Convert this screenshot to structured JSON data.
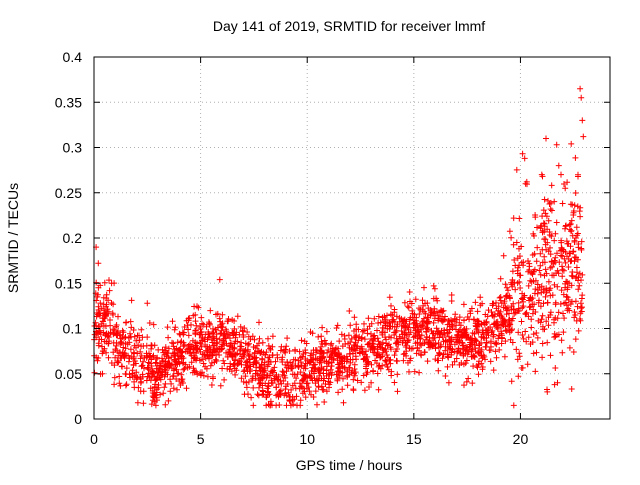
{
  "chart_data": {
    "type": "scatter",
    "title": "Day 141 of 2019, SRMTID for receiver lmmf",
    "xlabel": "GPS time / hours",
    "ylabel": "SRMTID / TECUs",
    "xlim": [
      0,
      24.2
    ],
    "ylim": [
      0,
      0.4
    ],
    "grid": true,
    "marker": "+",
    "marker_color": "#ff0000",
    "x_ticks": [
      0,
      5,
      10,
      15,
      20
    ],
    "y_ticks": [
      0,
      0.05,
      0.1,
      0.15,
      0.2,
      0.25,
      0.3,
      0.35,
      0.4
    ],
    "x_tick_labels": [
      "0",
      "5",
      "10",
      "15",
      "20"
    ],
    "y_tick_labels": [
      "0",
      "0.05",
      "0.1",
      "0.15",
      "0.2",
      "0.25",
      "0.3",
      "0.35",
      "0.4"
    ],
    "series": [
      {
        "name": "SRMTID",
        "trend": [
          [
            0,
            0.1
          ],
          [
            0.5,
            0.105
          ],
          [
            1,
            0.085
          ],
          [
            1.5,
            0.075
          ],
          [
            2,
            0.065
          ],
          [
            2.5,
            0.055
          ],
          [
            3,
            0.05
          ],
          [
            3.5,
            0.058
          ],
          [
            4,
            0.068
          ],
          [
            4.5,
            0.075
          ],
          [
            5,
            0.08
          ],
          [
            5.5,
            0.085
          ],
          [
            6,
            0.085
          ],
          [
            6.5,
            0.08
          ],
          [
            7,
            0.075
          ],
          [
            7.5,
            0.06
          ],
          [
            8,
            0.05
          ],
          [
            8.5,
            0.045
          ],
          [
            9,
            0.045
          ],
          [
            9.5,
            0.05
          ],
          [
            10,
            0.055
          ],
          [
            10.5,
            0.06
          ],
          [
            11,
            0.063
          ],
          [
            11.5,
            0.066
          ],
          [
            12,
            0.07
          ],
          [
            12.5,
            0.073
          ],
          [
            13,
            0.077
          ],
          [
            13.5,
            0.082
          ],
          [
            14,
            0.087
          ],
          [
            14.5,
            0.093
          ],
          [
            15,
            0.098
          ],
          [
            15.5,
            0.1
          ],
          [
            16,
            0.1
          ],
          [
            16.5,
            0.095
          ],
          [
            17,
            0.09
          ],
          [
            17.5,
            0.085
          ],
          [
            18,
            0.088
          ],
          [
            18.5,
            0.095
          ],
          [
            19,
            0.105
          ],
          [
            19.5,
            0.12
          ],
          [
            20,
            0.14
          ],
          [
            20.5,
            0.155
          ],
          [
            21,
            0.16
          ],
          [
            21.5,
            0.155
          ],
          [
            22,
            0.16
          ],
          [
            22.5,
            0.17
          ],
          [
            22.9,
            0.18
          ]
        ],
        "outliers": [
          [
            0.1,
            0.19
          ],
          [
            0.2,
            0.172
          ],
          [
            2.5,
            0.128
          ],
          [
            5.9,
            0.154
          ],
          [
            11.7,
            0.018
          ],
          [
            20.1,
            0.293
          ],
          [
            20.2,
            0.288
          ],
          [
            20.3,
            0.262
          ],
          [
            21.0,
            0.27
          ],
          [
            21.2,
            0.31
          ],
          [
            21.7,
            0.303
          ],
          [
            21.8,
            0.28
          ],
          [
            21.9,
            0.27
          ],
          [
            22.1,
            0.255
          ],
          [
            22.6,
            0.2
          ],
          [
            22.8,
            0.365
          ],
          [
            22.85,
            0.355
          ],
          [
            22.9,
            0.33
          ],
          [
            22.95,
            0.312
          ],
          [
            22.7,
            0.268
          ],
          [
            21.6,
            0.038
          ],
          [
            22.5,
            0.074
          ]
        ]
      }
    ]
  }
}
